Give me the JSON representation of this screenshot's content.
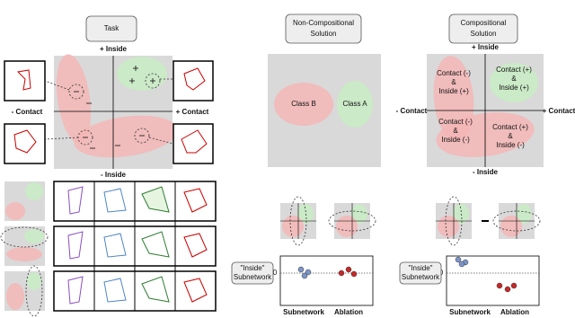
{
  "task": {
    "title": "Task",
    "axis": {
      "top": "+ Inside",
      "bottom": "- Inside",
      "left": "- Contact",
      "right": "+ Contact"
    }
  },
  "non_compositional": {
    "title": [
      "Non-Compositional",
      "Solution"
    ],
    "classes": [
      "Class B",
      "Class A"
    ]
  },
  "compositional": {
    "title": [
      "Compositional",
      "Solution"
    ],
    "axis": {
      "top": "+ Inside",
      "bottom": "- Inside",
      "left": "- Contact",
      "right": "+ Contact"
    },
    "quadrants": [
      [
        "Contact (-)",
        "&",
        "Inside (+)"
      ],
      [
        "Contact (+)",
        "&",
        "Inside (+)"
      ],
      [
        "Contact (-)",
        "&",
        "Inside (-)"
      ],
      [
        "Contact (+)",
        "&",
        "Inside (-)"
      ]
    ]
  },
  "probes": [
    {
      "ylabel": [
        "\"Inside\"",
        "Subnetwork"
      ],
      "zero": "0",
      "xlabels": [
        "Subnetwork",
        "Ablation"
      ]
    },
    {
      "ylabel": [
        "\"Inside\"",
        "Subnetwork"
      ],
      "zero": "0",
      "xlabels": [
        "Subnetwork",
        "Ablation"
      ]
    }
  ]
}
